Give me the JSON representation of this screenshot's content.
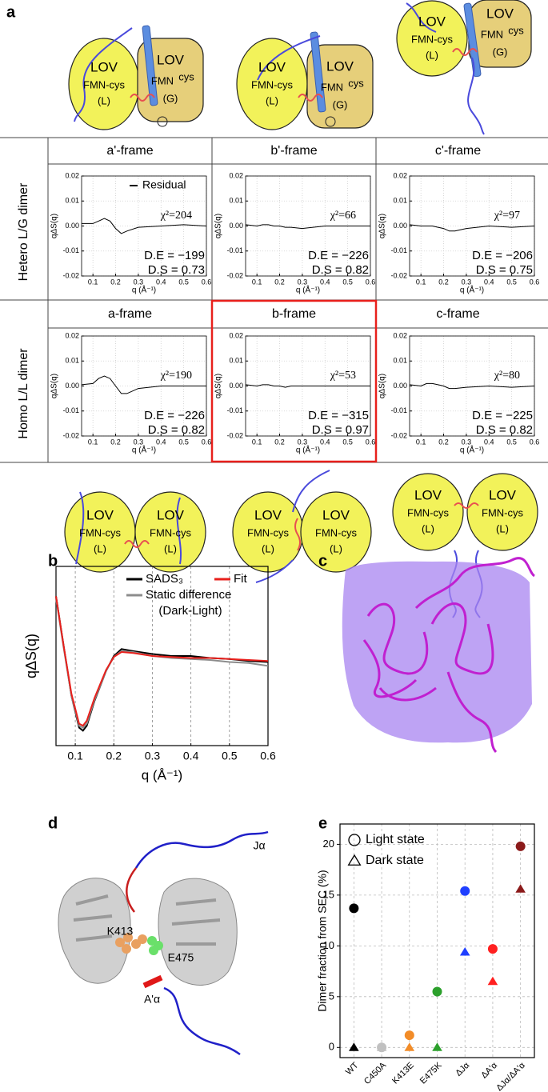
{
  "panel_labels": [
    "a",
    "b",
    "c",
    "d",
    "e"
  ],
  "rows": [
    "Hetero L/G dimer",
    "Homo L/L dimer"
  ],
  "cartoons": [
    {
      "domains": [
        {
          "lines": [
            "LOV",
            "FMN-cys",
            "(L)"
          ]
        },
        {
          "lines": [
            "LOV",
            "FMN",
            "cys",
            "(G)"
          ]
        }
      ]
    },
    {
      "domains": [
        {
          "lines": [
            "LOV",
            "FMN-cys",
            "(L)"
          ]
        },
        {
          "lines": [
            "LOV",
            "FMN",
            "cys",
            "(G)"
          ]
        }
      ]
    },
    {
      "domains": [
        {
          "lines": [
            "LOV",
            "FMN-cys",
            "(L)"
          ]
        },
        {
          "lines": [
            "LOV",
            "FMN",
            "cys",
            "(G)"
          ]
        }
      ]
    },
    {
      "domains": [
        {
          "lines": [
            "LOV",
            "FMN-cys",
            "(L)"
          ]
        },
        {
          "lines": [
            "LOV",
            "FMN-cys",
            "(L)"
          ]
        }
      ]
    },
    {
      "domains": [
        {
          "lines": [
            "LOV",
            "FMN-cys",
            "(L)"
          ]
        },
        {
          "lines": [
            "LOV",
            "FMN-cys",
            "(L)"
          ]
        }
      ]
    },
    {
      "domains": [
        {
          "lines": [
            "LOV",
            "FMN-cys",
            "(L)"
          ]
        },
        {
          "lines": [
            "LOV",
            "FMN-cys",
            "(L)"
          ]
        }
      ]
    }
  ],
  "structure_labels": [
    "K413",
    "E475",
    "Jα",
    "A'α"
  ],
  "chart_data": [
    {
      "type": "line",
      "title": "a'-frame",
      "xlabel": "q (Å⁻¹)",
      "ylabel": "qΔS(q)",
      "x": [
        0.05,
        0.1,
        0.125,
        0.15,
        0.175,
        0.2,
        0.225,
        0.25,
        0.3,
        0.4,
        0.5,
        0.6
      ],
      "series": [
        {
          "name": "Residual",
          "color": "#000000",
          "values": [
            0.001,
            0.001,
            0.002,
            0.003,
            0.002,
            -0.001,
            -0.003,
            -0.002,
            -0.0005,
            0.0,
            0.0005,
            0.0
          ]
        }
      ],
      "xlim": [
        0.05,
        0.6
      ],
      "ylim": [
        -0.02,
        0.02
      ],
      "xticks": [
        0.1,
        0.2,
        0.3,
        0.4,
        0.5,
        0.6
      ],
      "yticks": [
        -0.02,
        -0.01,
        {
          "value": 0,
          "label": "0.00"
        },
        0.01,
        0.02
      ],
      "grid": true,
      "annotations": [
        "χ²=204",
        "D.E = −199",
        "D.S = 0.73"
      ]
    },
    {
      "type": "line",
      "title": "b'-frame",
      "xlabel": "q (Å⁻¹)",
      "ylabel": "qΔS(q)",
      "x": [
        0.05,
        0.1,
        0.125,
        0.15,
        0.175,
        0.2,
        0.225,
        0.25,
        0.3,
        0.4,
        0.5,
        0.6
      ],
      "series": [
        {
          "color": "#000000",
          "values": [
            0.0005,
            0.0,
            0.0005,
            0.0005,
            0.0,
            0.0,
            -0.0005,
            -0.0005,
            -0.001,
            0.0,
            0.0,
            0.0
          ]
        }
      ],
      "xlim": [
        0.05,
        0.6
      ],
      "ylim": [
        -0.02,
        0.02
      ],
      "xticks": [
        0.1,
        0.2,
        0.3,
        0.4,
        0.5,
        0.6
      ],
      "yticks": [
        -0.02,
        -0.01,
        {
          "value": 0,
          "label": "0.00"
        },
        0.01,
        0.02
      ],
      "grid": true,
      "annotations": [
        "χ²=66",
        "D.E = −226",
        "D.S = 0.82"
      ]
    },
    {
      "type": "line",
      "title": "c'-frame",
      "xlabel": "q (Å⁻¹)",
      "ylabel": "qΔS(q)",
      "x": [
        0.05,
        0.1,
        0.125,
        0.15,
        0.175,
        0.2,
        0.225,
        0.25,
        0.3,
        0.4,
        0.5,
        0.6
      ],
      "series": [
        {
          "color": "#000000",
          "values": [
            0.0005,
            0.0,
            0.0,
            0.0,
            -0.0005,
            -0.001,
            -0.002,
            -0.002,
            -0.001,
            0.0,
            -0.0005,
            0.0
          ]
        }
      ],
      "xlim": [
        0.05,
        0.6
      ],
      "ylim": [
        -0.02,
        0.02
      ],
      "xticks": [
        0.1,
        0.2,
        0.3,
        0.4,
        0.5,
        0.6
      ],
      "yticks": [
        -0.02,
        -0.01,
        {
          "value": 0,
          "label": "0.00"
        },
        0.01,
        0.02
      ],
      "grid": true,
      "annotations": [
        "χ²=97",
        "D.E = −206",
        "D.S = 0.75"
      ]
    },
    {
      "type": "line",
      "title": "a-frame",
      "xlabel": "q (Å⁻¹)",
      "ylabel": "qΔS(q)",
      "x": [
        0.05,
        0.1,
        0.125,
        0.15,
        0.175,
        0.2,
        0.225,
        0.25,
        0.3,
        0.4,
        0.5,
        0.6
      ],
      "series": [
        {
          "color": "#000000",
          "values": [
            0.0005,
            0.001,
            0.003,
            0.004,
            0.003,
            0.0,
            -0.003,
            -0.003,
            -0.001,
            0.0,
            0.0,
            0.0
          ]
        }
      ],
      "xlim": [
        0.05,
        0.6
      ],
      "ylim": [
        -0.02,
        0.02
      ],
      "xticks": [
        0.1,
        0.2,
        0.3,
        0.4,
        0.5,
        0.6
      ],
      "yticks": [
        -0.02,
        -0.01,
        {
          "value": 0,
          "label": "0.00"
        },
        0.01,
        0.02
      ],
      "grid": true,
      "annotations": [
        "χ²=190",
        "D.E = −226",
        "D.S = 0.82"
      ]
    },
    {
      "type": "line",
      "title": "b-frame",
      "xlabel": "q (Å⁻¹)",
      "ylabel": "qΔS(q)",
      "x": [
        0.05,
        0.1,
        0.125,
        0.15,
        0.175,
        0.2,
        0.225,
        0.25,
        0.3,
        0.4,
        0.5,
        0.6
      ],
      "series": [
        {
          "color": "#000000",
          "values": [
            0.0005,
            0.0,
            0.0005,
            0.0005,
            0.0,
            0.0,
            -0.0005,
            0.0,
            0.0,
            0.0,
            0.0,
            0.0
          ]
        }
      ],
      "xlim": [
        0.05,
        0.6
      ],
      "ylim": [
        -0.02,
        0.02
      ],
      "xticks": [
        0.1,
        0.2,
        0.3,
        0.4,
        0.5,
        0.6
      ],
      "yticks": [
        -0.02,
        -0.01,
        {
          "value": 0,
          "label": "0.00"
        },
        0.01,
        0.02
      ],
      "grid": true,
      "annotations": [
        "χ²=53",
        "D.E = −315",
        "D.S = 0.97"
      ]
    },
    {
      "type": "line",
      "title": "c-frame",
      "xlabel": "q (Å⁻¹)",
      "ylabel": "qΔS(q)",
      "x": [
        0.05,
        0.1,
        0.125,
        0.15,
        0.175,
        0.2,
        0.225,
        0.25,
        0.3,
        0.4,
        0.5,
        0.6
      ],
      "series": [
        {
          "color": "#000000",
          "values": [
            0.0005,
            0.0,
            0.001,
            0.001,
            0.0005,
            0.0,
            -0.001,
            -0.001,
            -0.0005,
            0.0,
            -0.0005,
            0.0
          ]
        }
      ],
      "xlim": [
        0.05,
        0.6
      ],
      "ylim": [
        -0.02,
        0.02
      ],
      "xticks": [
        0.1,
        0.2,
        0.3,
        0.4,
        0.5,
        0.6
      ],
      "yticks": [
        -0.02,
        -0.01,
        {
          "value": 0,
          "label": "0.00"
        },
        0.01,
        0.02
      ],
      "grid": true,
      "annotations": [
        "χ²=80",
        "D.E = −225",
        "D.S = 0.82"
      ]
    },
    {
      "type": "line",
      "xlabel": "q (Å⁻¹)",
      "ylabel": "qΔS(q)",
      "x": [
        0.05,
        0.07,
        0.09,
        0.11,
        0.12,
        0.13,
        0.15,
        0.18,
        0.2,
        0.22,
        0.25,
        0.3,
        0.35,
        0.4,
        0.45,
        0.5,
        0.55,
        0.6
      ],
      "series": [
        {
          "name": "SADS₃",
          "color": "#000000",
          "values": [
            0.6,
            0.1,
            -0.4,
            -0.72,
            -0.75,
            -0.7,
            -0.45,
            -0.15,
            0.0,
            0.07,
            0.05,
            0.02,
            0.0,
            0.0,
            -0.02,
            -0.03,
            -0.05,
            -0.06
          ]
        },
        {
          "name": "Static difference",
          "color": "#8c8c8c",
          "values": [
            0.58,
            0.08,
            -0.4,
            -0.7,
            -0.72,
            -0.68,
            -0.44,
            -0.15,
            -0.01,
            0.05,
            0.04,
            0.0,
            -0.02,
            -0.03,
            -0.04,
            -0.06,
            -0.07,
            -0.1
          ]
        },
        {
          "name": "Fit",
          "color": "#e8201c",
          "values": [
            0.6,
            0.1,
            -0.38,
            -0.68,
            -0.7,
            -0.65,
            -0.42,
            -0.14,
            -0.01,
            0.04,
            0.03,
            0.0,
            -0.01,
            -0.02,
            -0.02,
            -0.03,
            -0.04,
            -0.05
          ]
        }
      ],
      "legend_note": "(Dark-Light)",
      "xlim": [
        0.05,
        0.6
      ],
      "ylim": [
        -0.9,
        0.9
      ],
      "xticks": [
        0.1,
        0.2,
        0.3,
        0.4,
        0.5,
        0.6
      ],
      "grid": true
    },
    {
      "type": "scatter",
      "ylabel": "Dimer fraction from SEC (%)",
      "categories": [
        "WT",
        "C450A",
        "K413E",
        "E475K",
        "ΔJα",
        "ΔA'α",
        "ΔJα/ΔA'α"
      ],
      "colors": [
        "#000000",
        "#c0c0c0",
        "#f28c28",
        "#2ca02c",
        "#1f3fff",
        "#ff2020",
        "#8b1a1a"
      ],
      "series": [
        {
          "name": "Light state",
          "marker": "circle",
          "values": [
            13.7,
            0,
            1.2,
            5.5,
            15.4,
            9.7,
            19.8
          ]
        },
        {
          "name": "Dark state",
          "marker": "triangle",
          "values": [
            0,
            0,
            0,
            0,
            9.4,
            6.5,
            15.6
          ]
        }
      ],
      "ylim": [
        -1,
        22
      ],
      "yticks": [
        0,
        5,
        10,
        15,
        20
      ],
      "grid": true
    }
  ]
}
